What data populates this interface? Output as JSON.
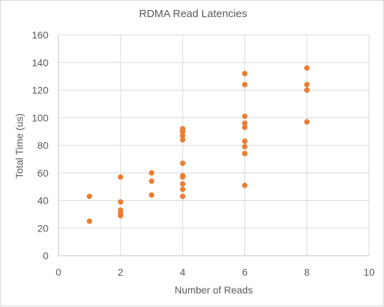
{
  "chart_data": {
    "type": "scatter",
    "title": "RDMA Read Latencies",
    "xlabel": "Number of Reads",
    "ylabel": "Total Time (us)",
    "xlim": [
      0,
      10
    ],
    "ylim": [
      0,
      160
    ],
    "x_ticks": [
      0,
      2,
      4,
      6,
      8,
      10
    ],
    "y_ticks": [
      0,
      20,
      40,
      60,
      80,
      100,
      120,
      140,
      160
    ],
    "grid": true,
    "legend": "none",
    "marker_color": "#ed7d31",
    "series": [
      {
        "points": [
          {
            "x": 1,
            "y": 43
          },
          {
            "x": 1,
            "y": 25
          },
          {
            "x": 2,
            "y": 57
          },
          {
            "x": 2,
            "y": 39
          },
          {
            "x": 2,
            "y": 33
          },
          {
            "x": 2,
            "y": 31
          },
          {
            "x": 2,
            "y": 29
          },
          {
            "x": 3,
            "y": 60
          },
          {
            "x": 3,
            "y": 54
          },
          {
            "x": 3,
            "y": 44
          },
          {
            "x": 4,
            "y": 92
          },
          {
            "x": 4,
            "y": 90
          },
          {
            "x": 4,
            "y": 87
          },
          {
            "x": 4,
            "y": 84
          },
          {
            "x": 4,
            "y": 67
          },
          {
            "x": 4,
            "y": 58
          },
          {
            "x": 4,
            "y": 57
          },
          {
            "x": 4,
            "y": 52
          },
          {
            "x": 4,
            "y": 48
          },
          {
            "x": 4,
            "y": 43
          },
          {
            "x": 6,
            "y": 132
          },
          {
            "x": 6,
            "y": 124
          },
          {
            "x": 6,
            "y": 101
          },
          {
            "x": 6,
            "y": 96
          },
          {
            "x": 6,
            "y": 93
          },
          {
            "x": 6,
            "y": 83
          },
          {
            "x": 6,
            "y": 79
          },
          {
            "x": 6,
            "y": 74
          },
          {
            "x": 6,
            "y": 51
          },
          {
            "x": 8,
            "y": 136
          },
          {
            "x": 8,
            "y": 124
          },
          {
            "x": 8,
            "y": 120
          },
          {
            "x": 8,
            "y": 97
          }
        ]
      }
    ]
  }
}
